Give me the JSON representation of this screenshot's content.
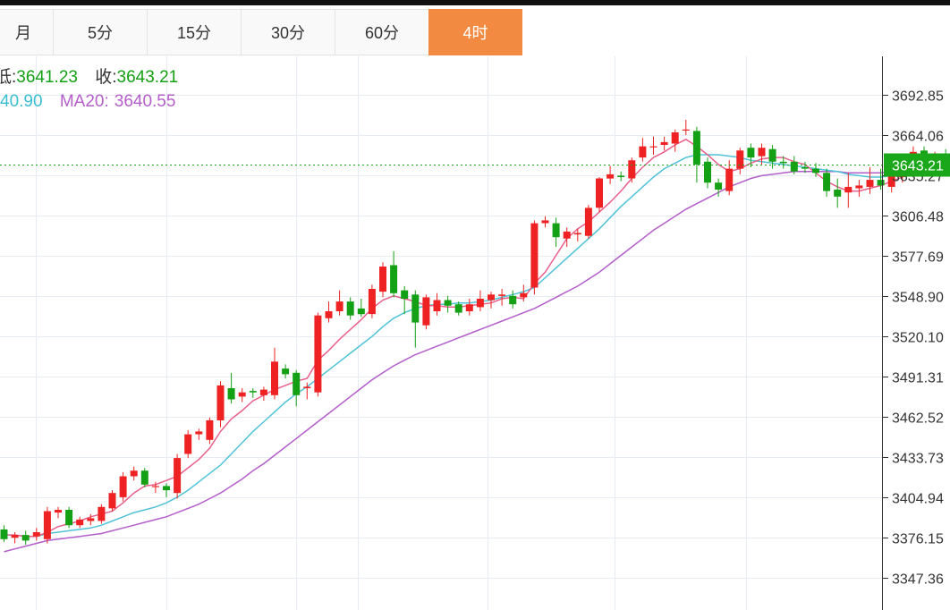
{
  "tabs": [
    {
      "label": "月",
      "active": false
    },
    {
      "label": "5分",
      "active": false
    },
    {
      "label": "15分",
      "active": false
    },
    {
      "label": "30分",
      "active": false
    },
    {
      "label": "60分",
      "active": false
    },
    {
      "label": "4时",
      "active": true
    }
  ],
  "legend": {
    "low_label": "低:",
    "low_value": "3641.23",
    "close_label": "收:",
    "close_value": "3643.21",
    "ma10_value": "40.90",
    "ma20_label": "MA20:",
    "ma20_value": "3640.55"
  },
  "colors": {
    "up": "#ee2222",
    "down": "#14a014",
    "ma5": "#e8608a",
    "ma10": "#4fc3d6",
    "ma20": "#b35ec9",
    "accent": "#f28b41",
    "last_price_bg": "#1aa81a",
    "legend_green": "#14a014",
    "legend_cyan": "#3bbdd0",
    "legend_purple": "#b35ec9"
  },
  "chart_data": {
    "type": "candlestick",
    "y_ticks": [
      "3692.85",
      "3664.06",
      "3635.27",
      "3606.48",
      "3577.69",
      "3548.90",
      "3520.10",
      "3491.31",
      "3462.52",
      "3433.73",
      "3404.94",
      "3376.15",
      "3347.36"
    ],
    "y_tick_values": [
      3692.85,
      3664.06,
      3635.27,
      3606.48,
      3577.69,
      3548.9,
      3520.1,
      3491.31,
      3462.52,
      3433.73,
      3404.94,
      3376.15,
      3347.36
    ],
    "ylim": [
      3325,
      3705
    ],
    "last_price": 3643.21,
    "last_price_label": "3643.21",
    "grid": true,
    "candles": [
      [
        3382,
        3375,
        3385,
        3373
      ],
      [
        3376,
        3378,
        3380,
        3372
      ],
      [
        3378,
        3374,
        3381,
        3371
      ],
      [
        3377,
        3380,
        3383,
        3374
      ],
      [
        3375,
        3395,
        3398,
        3372
      ],
      [
        3394,
        3396,
        3398,
        3390
      ],
      [
        3396,
        3385,
        3398,
        3383
      ],
      [
        3385,
        3389,
        3391,
        3383
      ],
      [
        3388,
        3390,
        3393,
        3385
      ],
      [
        3388,
        3398,
        3400,
        3386
      ],
      [
        3397,
        3408,
        3410,
        3395
      ],
      [
        3405,
        3420,
        3423,
        3402
      ],
      [
        3420,
        3424,
        3427,
        3417
      ],
      [
        3424,
        3414,
        3426,
        3412
      ],
      [
        3413,
        3413,
        3416,
        3408
      ],
      [
        3413,
        3410,
        3415,
        3405
      ],
      [
        3408,
        3433,
        3436,
        3404
      ],
      [
        3436,
        3450,
        3453,
        3433
      ],
      [
        3450,
        3452,
        3454,
        3446
      ],
      [
        3446,
        3460,
        3462,
        3443
      ],
      [
        3460,
        3485,
        3488,
        3455
      ],
      [
        3483,
        3475,
        3494,
        3472
      ],
      [
        3477,
        3480,
        3483,
        3473
      ],
      [
        3481,
        3480,
        3483,
        3476
      ],
      [
        3478,
        3482,
        3484,
        3474
      ],
      [
        3478,
        3502,
        3512,
        3475
      ],
      [
        3497,
        3493,
        3500,
        3490
      ],
      [
        3494,
        3478,
        3496,
        3470
      ],
      [
        3483,
        3484,
        3487,
        3475
      ],
      [
        3480,
        3535,
        3537,
        3477
      ],
      [
        3533,
        3538,
        3545,
        3530
      ],
      [
        3538,
        3545,
        3553,
        3535
      ],
      [
        3545,
        3535,
        3548,
        3532
      ],
      [
        3540,
        3536,
        3547,
        3534
      ],
      [
        3536,
        3554,
        3557,
        3533
      ],
      [
        3552,
        3570,
        3573,
        3548
      ],
      [
        3571,
        3551,
        3581,
        3548
      ],
      [
        3553,
        3547,
        3556,
        3536
      ],
      [
        3550,
        3530,
        3553,
        3512
      ],
      [
        3528,
        3548,
        3550,
        3525
      ],
      [
        3538,
        3546,
        3551,
        3535
      ],
      [
        3546,
        3542,
        3549,
        3537
      ],
      [
        3543,
        3537,
        3545,
        3535
      ],
      [
        3538,
        3543,
        3547,
        3535
      ],
      [
        3541,
        3547,
        3553,
        3538
      ],
      [
        3546,
        3550,
        3552,
        3540
      ],
      [
        3549,
        3550,
        3554,
        3542
      ],
      [
        3549,
        3543,
        3553,
        3540
      ],
      [
        3548,
        3551,
        3557,
        3545
      ],
      [
        3555,
        3601,
        3603,
        3550
      ],
      [
        3601,
        3603,
        3606,
        3598
      ],
      [
        3601,
        3591,
        3605,
        3584
      ],
      [
        3590,
        3595,
        3598,
        3584
      ],
      [
        3593,
        3594,
        3597,
        3588
      ],
      [
        3592,
        3612,
        3614,
        3590
      ],
      [
        3612,
        3633,
        3634,
        3609
      ],
      [
        3633,
        3636,
        3642,
        3629
      ],
      [
        3635,
        3634,
        3638,
        3631
      ],
      [
        3633,
        3646,
        3648,
        3630
      ],
      [
        3648,
        3656,
        3662,
        3645
      ],
      [
        3656,
        3656,
        3663,
        3650
      ],
      [
        3657,
        3659,
        3663,
        3653
      ],
      [
        3658,
        3666,
        3668,
        3652
      ],
      [
        3668,
        3668,
        3675,
        3664
      ],
      [
        3667,
        3643,
        3670,
        3630
      ],
      [
        3645,
        3630,
        3648,
        3626
      ],
      [
        3630,
        3625,
        3633,
        3620
      ],
      [
        3624,
        3640,
        3646,
        3621
      ],
      [
        3640,
        3653,
        3655,
        3636
      ],
      [
        3655,
        3648,
        3658,
        3641
      ],
      [
        3649,
        3655,
        3658,
        3643
      ],
      [
        3654,
        3645,
        3657,
        3640
      ],
      [
        3645,
        3644,
        3649,
        3640
      ],
      [
        3645,
        3638,
        3649,
        3636
      ],
      [
        3641,
        3640,
        3645,
        3637
      ],
      [
        3640,
        3637,
        3644,
        3634
      ],
      [
        3637,
        3624,
        3640,
        3620
      ],
      [
        3625,
        3620,
        3633,
        3612
      ],
      [
        3623,
        3627,
        3637,
        3612
      ],
      [
        3626,
        3628,
        3632,
        3620
      ],
      [
        3627,
        3632,
        3641,
        3622
      ],
      [
        3632,
        3628,
        3640,
        3625
      ],
      [
        3627,
        3635,
        3643,
        3623
      ],
      [
        3634,
        3643,
        3648,
        3630
      ],
      [
        3642,
        3652,
        3656,
        3638
      ],
      [
        3653,
        3645,
        3656,
        3640
      ],
      [
        3644,
        3650,
        3652,
        3638
      ],
      [
        3650,
        3646,
        3654,
        3643
      ],
      [
        3646,
        3648,
        3652,
        3642
      ],
      [
        3648,
        3643,
        3650,
        3641
      ]
    ],
    "ma5": [
      3378,
      3378,
      3377,
      3377,
      3380,
      3384,
      3386,
      3388,
      3391,
      3393,
      3395,
      3401,
      3408,
      3413,
      3414,
      3417,
      3420,
      3426,
      3432,
      3440,
      3452,
      3461,
      3467,
      3474,
      3478,
      3482,
      3485,
      3488,
      3490,
      3503,
      3510,
      3518,
      3525,
      3532,
      3540,
      3546,
      3549,
      3547,
      3545,
      3542,
      3542,
      3541,
      3541,
      3542,
      3543,
      3544,
      3547,
      3548,
      3547,
      3558,
      3566,
      3578,
      3590,
      3597,
      3602,
      3609,
      3616,
      3624,
      3633,
      3641,
      3648,
      3652,
      3657,
      3661,
      3656,
      3650,
      3643,
      3638,
      3640,
      3644,
      3647,
      3648,
      3648,
      3645,
      3643,
      3637,
      3631,
      3627,
      3624,
      3624,
      3626,
      3628,
      3631,
      3634,
      3640,
      3643,
      3645,
      3647,
      3648,
      3647
    ],
    "ma10": [
      3378,
      3378,
      3377,
      3377,
      3379,
      3380,
      3381,
      3382,
      3383,
      3385,
      3388,
      3391,
      3394,
      3396,
      3398,
      3401,
      3405,
      3410,
      3416,
      3422,
      3428,
      3436,
      3444,
      3452,
      3459,
      3466,
      3473,
      3479,
      3484,
      3490,
      3496,
      3502,
      3508,
      3514,
      3520,
      3527,
      3533,
      3537,
      3540,
      3542,
      3543,
      3543,
      3544,
      3544,
      3545,
      3546,
      3548,
      3550,
      3552,
      3555,
      3562,
      3569,
      3576,
      3583,
      3590,
      3597,
      3605,
      3613,
      3620,
      3627,
      3634,
      3640,
      3644,
      3648,
      3650,
      3650,
      3650,
      3649,
      3648,
      3646,
      3645,
      3644,
      3643,
      3642,
      3641,
      3640,
      3639,
      3638,
      3636,
      3635,
      3634,
      3634,
      3635,
      3636,
      3637,
      3638,
      3639,
      3640,
      3641,
      3641
    ],
    "ma20": [
      3366,
      3368,
      3370,
      3372,
      3374,
      3375,
      3376,
      3377,
      3378,
      3379,
      3381,
      3383,
      3385,
      3387,
      3389,
      3391,
      3394,
      3397,
      3400,
      3404,
      3408,
      3413,
      3418,
      3424,
      3429,
      3435,
      3441,
      3447,
      3453,
      3459,
      3465,
      3471,
      3477,
      3483,
      3489,
      3494,
      3499,
      3503,
      3507,
      3510,
      3513,
      3516,
      3519,
      3522,
      3525,
      3528,
      3531,
      3534,
      3537,
      3540,
      3544,
      3548,
      3552,
      3556,
      3561,
      3566,
      3572,
      3578,
      3584,
      3590,
      3596,
      3601,
      3606,
      3611,
      3615,
      3619,
      3623,
      3627,
      3630,
      3633,
      3635,
      3636,
      3637,
      3638,
      3638,
      3638,
      3638,
      3638,
      3637,
      3637,
      3637,
      3637,
      3638,
      3638,
      3639,
      3639,
      3640,
      3640,
      3640,
      3641
    ]
  }
}
